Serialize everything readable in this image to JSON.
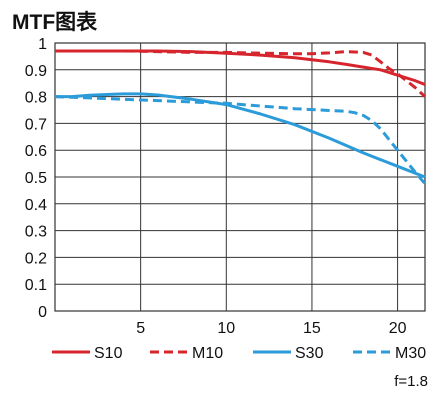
{
  "chart_data": {
    "type": "line",
    "title": "MTF图表",
    "xlabel": "",
    "ylabel": "",
    "xlim": [
      0,
      21.6
    ],
    "ylim": [
      0,
      1
    ],
    "xticks": [
      5,
      10,
      15,
      20
    ],
    "yticks": [
      0,
      0.1,
      0.2,
      0.3,
      0.4,
      0.5,
      0.6,
      0.7,
      0.8,
      0.9,
      1
    ],
    "ytick_labels": [
      "0",
      "0.1",
      "0.2",
      "0.3",
      "0.4",
      "0.5",
      "0.6",
      "0.7",
      "0.8",
      "0.9",
      "1"
    ],
    "grid": true,
    "legend_position": "bottom",
    "note": "f=1.8",
    "series": [
      {
        "name": "S10",
        "color": "#d7252e",
        "dash": "solid",
        "x": [
          0,
          2,
          4,
          6,
          8,
          10,
          12,
          14,
          16,
          17,
          18,
          19,
          20,
          21,
          21.6
        ],
        "y": [
          0.97,
          0.97,
          0.97,
          0.97,
          0.968,
          0.962,
          0.955,
          0.945,
          0.93,
          0.92,
          0.91,
          0.9,
          0.88,
          0.86,
          0.845
        ]
      },
      {
        "name": "M10",
        "color": "#d7252e",
        "dash": "dashed",
        "x": [
          0,
          2,
          4,
          6,
          8,
          10,
          12,
          14,
          15,
          16,
          17,
          18,
          18.5,
          19,
          19.5,
          20,
          20.5,
          21,
          21.6
        ],
        "y": [
          0.97,
          0.97,
          0.97,
          0.968,
          0.965,
          0.965,
          0.962,
          0.96,
          0.96,
          0.963,
          0.968,
          0.965,
          0.955,
          0.93,
          0.905,
          0.885,
          0.86,
          0.835,
          0.8
        ]
      },
      {
        "name": "S30",
        "color": "#2b9bd9",
        "dash": "solid",
        "x": [
          0,
          1,
          2,
          3,
          4,
          5,
          6,
          7,
          8,
          10,
          12,
          14,
          16,
          18,
          20,
          21,
          21.6
        ],
        "y": [
          0.8,
          0.8,
          0.805,
          0.808,
          0.81,
          0.81,
          0.806,
          0.798,
          0.79,
          0.77,
          0.735,
          0.695,
          0.645,
          0.59,
          0.54,
          0.515,
          0.5
        ]
      },
      {
        "name": "M30",
        "color": "#2b9bd9",
        "dash": "dashed",
        "x": [
          0,
          2,
          4,
          6,
          8,
          10,
          12,
          14,
          16,
          17,
          17.5,
          18,
          18.5,
          19,
          19.5,
          20,
          20.5,
          21,
          21.6
        ],
        "y": [
          0.8,
          0.795,
          0.79,
          0.785,
          0.78,
          0.775,
          0.765,
          0.755,
          0.748,
          0.745,
          0.74,
          0.73,
          0.71,
          0.68,
          0.64,
          0.6,
          0.56,
          0.52,
          0.475
        ]
      }
    ]
  }
}
